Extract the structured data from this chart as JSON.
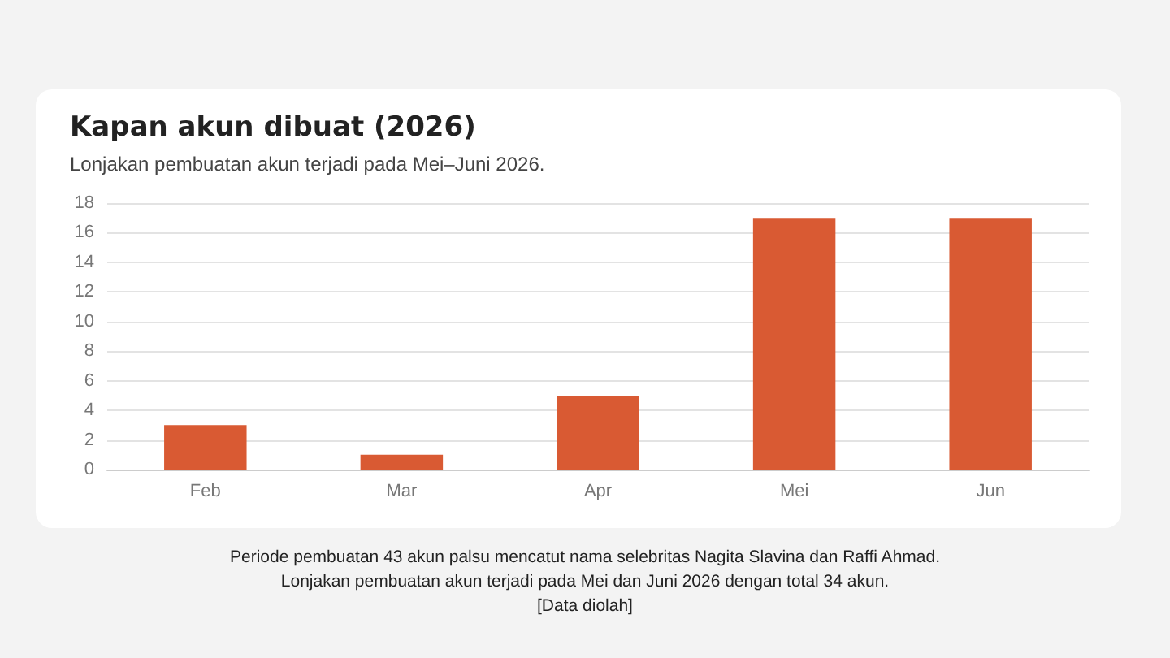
{
  "chart_data": {
    "type": "bar",
    "title": "Kapan akun dibuat (2026)",
    "subtitle": "Lonjakan pembuatan akun terjadi pada Mei–Juni 2026.",
    "categories": [
      "Feb",
      "Mar",
      "Apr",
      "Mei",
      "Jun"
    ],
    "values": [
      3,
      1,
      5,
      17,
      17
    ],
    "color": "#d95a33",
    "ylim": [
      0,
      18
    ],
    "yticks": [
      0,
      2,
      4,
      6,
      8,
      10,
      12,
      14,
      16,
      18
    ],
    "grid": "y",
    "annotations": [
      "Periode pembuatan 43 akun palsu mencatut nama selebritas Nagita Slavina dan Raffi Ahmad.",
      "Lonjakan pembuatan akun terjadi pada Mei dan Juni 2026 dengan total 34 akun.",
      "[Data diolah]"
    ]
  }
}
